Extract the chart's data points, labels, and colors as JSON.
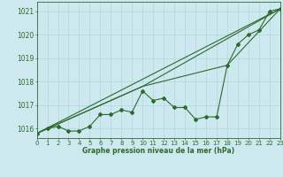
{
  "title": "Graphe pression niveau de la mer (hPa)",
  "background_color": "#cde8ee",
  "grid_color": "#b0d8de",
  "line_color": "#2d6a2d",
  "x_min": 0,
  "x_max": 23,
  "y_min": 1015.6,
  "y_max": 1021.4,
  "yticks": [
    1016,
    1017,
    1018,
    1019,
    1020,
    1021
  ],
  "xticks": [
    0,
    1,
    2,
    3,
    4,
    5,
    6,
    7,
    8,
    9,
    10,
    11,
    12,
    13,
    14,
    15,
    16,
    17,
    18,
    19,
    20,
    21,
    22,
    23
  ],
  "series1_x": [
    0,
    1,
    2,
    3,
    4,
    5,
    6,
    7,
    8,
    9,
    10,
    11,
    12,
    13,
    14,
    15,
    16,
    17,
    18,
    19,
    20,
    21,
    22,
    23
  ],
  "series1_y": [
    1015.8,
    1016.0,
    1016.1,
    1015.9,
    1015.9,
    1016.1,
    1016.6,
    1016.6,
    1016.8,
    1016.7,
    1017.6,
    1017.2,
    1017.3,
    1016.9,
    1016.9,
    1016.4,
    1016.5,
    1016.5,
    1018.7,
    1019.6,
    1020.0,
    1020.2,
    1021.0,
    1021.1
  ],
  "series2_x": [
    0,
    23
  ],
  "series2_y": [
    1015.8,
    1021.1
  ],
  "series3_x": [
    0,
    10,
    23
  ],
  "series3_y": [
    1015.8,
    1017.8,
    1021.1
  ],
  "series4_x": [
    0,
    10,
    18,
    23
  ],
  "series4_y": [
    1015.8,
    1017.8,
    1018.7,
    1021.1
  ]
}
